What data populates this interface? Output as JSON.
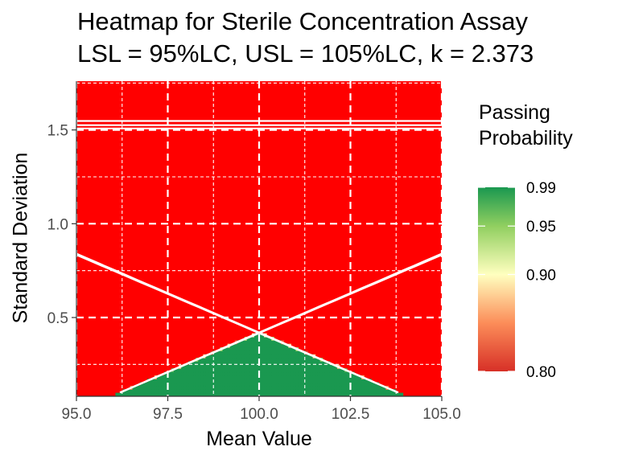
{
  "chart_data": {
    "type": "heatmap",
    "title_lines": [
      "Heatmap for Sterile Concentration Assay",
      "LSL = 95%LC, USL = 105%LC, k = 2.373"
    ],
    "xlabel": "Mean Value",
    "ylabel": "Standard Deviation",
    "x_ticks": [
      "95.0",
      "97.5",
      "100.0",
      "102.5",
      "105.0"
    ],
    "x_tick_values": [
      95.0,
      97.5,
      100.0,
      102.5,
      105.0
    ],
    "y_ticks": [
      "0.5",
      "1.0",
      "1.5"
    ],
    "y_tick_values": [
      0.5,
      1.0,
      1.5
    ],
    "xlim": [
      95.0,
      105.0
    ],
    "ylim": [
      0.08,
      1.76
    ],
    "k": 2.373,
    "lsl": 95,
    "usl": 105,
    "grid": true,
    "legend": {
      "title_lines": [
        "Passing",
        "Probability"
      ],
      "labels": [
        "0.99",
        "0.95",
        "0.90",
        "0.80"
      ],
      "values": [
        0.99,
        0.95,
        0.9,
        0.8
      ],
      "placement": "right"
    },
    "contour_levels": [
      0.99,
      0.95,
      0.9
    ],
    "colors": {
      "fail": "#ff0000",
      "pass": "#1a9850",
      "mid": "#ffffbf",
      "low": "#d73027",
      "gridline": "#ffffff",
      "contour": "#ffffff"
    }
  }
}
